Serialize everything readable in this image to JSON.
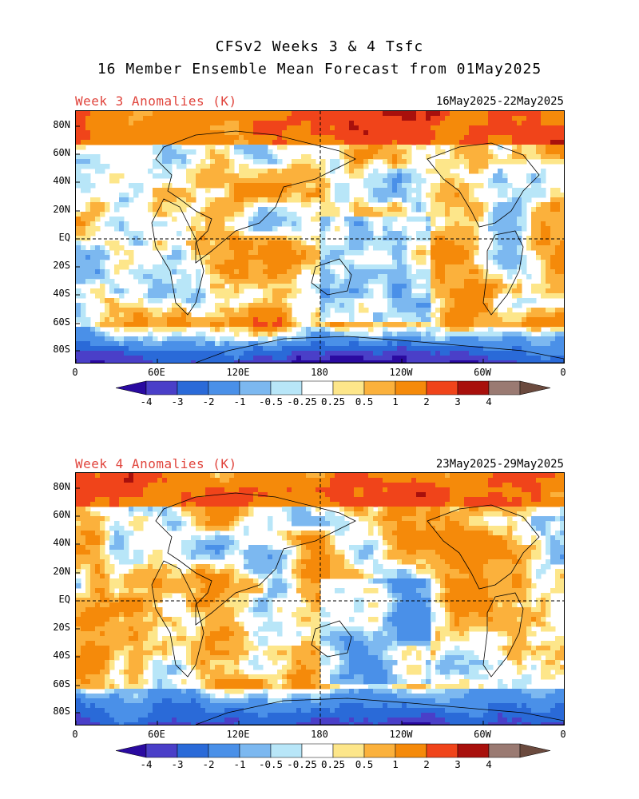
{
  "title": {
    "line1": "CFSv2 Weeks 3 & 4 Tsfc",
    "line2": "16 Member Ensemble Mean Forecast from 01May2025"
  },
  "panels": [
    {
      "label": "Week 3 Anomalies (K)",
      "date_range": "16May2025-22May2025",
      "lat_ticks": [
        "80N",
        "60N",
        "40N",
        "20N",
        "EQ",
        "20S",
        "40S",
        "60S",
        "80S"
      ],
      "lon_ticks": [
        "0",
        "60E",
        "120E",
        "180",
        "120W",
        "60W",
        "0"
      ]
    },
    {
      "label": "Week 4 Anomalies (K)",
      "date_range": "23May2025-29May2025",
      "lat_ticks": [
        "80N",
        "60N",
        "40N",
        "20N",
        "EQ",
        "20S",
        "40S",
        "60S",
        "80S"
      ],
      "lon_ticks": [
        "0",
        "60E",
        "120E",
        "180",
        "120W",
        "60W",
        "0"
      ]
    }
  ],
  "colorbar": {
    "labels": [
      "-4",
      "-3",
      "-2",
      "-1",
      "-0.5",
      "-0.25",
      "0.25",
      "0.5",
      "1",
      "2",
      "3",
      "4"
    ],
    "colors": [
      "#2a0aa0",
      "#4a3fc8",
      "#2a6ad8",
      "#4a90e8",
      "#7cb8f0",
      "#b8e6f8",
      "#ffffff",
      "#fde68a",
      "#fbb13c",
      "#f58a0a",
      "#f0441a",
      "#a8100c",
      "#9a7a72",
      "#6b4a3e"
    ]
  },
  "colors": {
    "deep_cold": "#2a0aa0",
    "cold": "#4a90e8",
    "cool": "#b8e6f8",
    "neutral": "#ffffff",
    "mild": "#fde68a",
    "warm": "#fbb13c",
    "hot": "#f58a0a",
    "very_hot": "#f0441a",
    "extreme": "#a8100c",
    "max": "#9a7a72",
    "label_red": "#e0443c"
  }
}
